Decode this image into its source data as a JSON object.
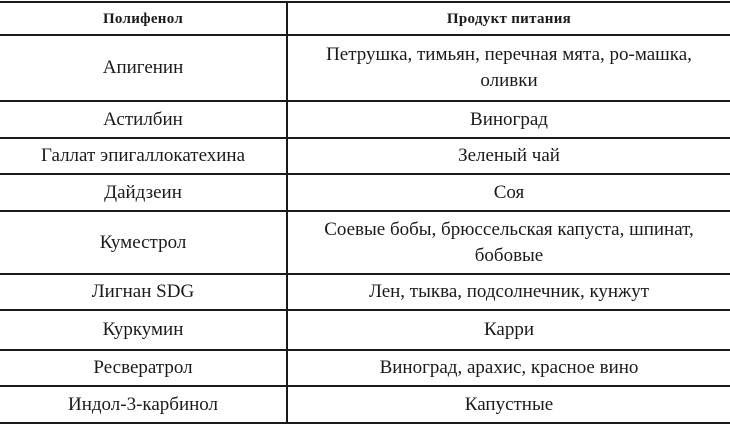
{
  "headers": [
    "Полифенол",
    "Продукт питания"
  ],
  "rows": [
    [
      "Апигенин",
      "Петрушка, тимьян, перечная мята, ро-машка, оливки"
    ],
    [
      "Астилбин",
      "Виноград"
    ],
    [
      "Галлат эпигаллокатехина",
      "Зеленый чай"
    ],
    [
      "Дайдзеин",
      "Соя"
    ],
    [
      "Куместрол",
      "Соевые бобы, брюссельская капуста, шпинат, бобовые"
    ],
    [
      "Лигнан SDG",
      "Лен, тыква, подсолнечник, кунжут"
    ],
    [
      "Куркумин",
      "Карри"
    ],
    [
      "Ресвератрол",
      "Виноград, арахис, красное вино"
    ],
    [
      "Индол-3-карбинол",
      "Капустные"
    ]
  ]
}
